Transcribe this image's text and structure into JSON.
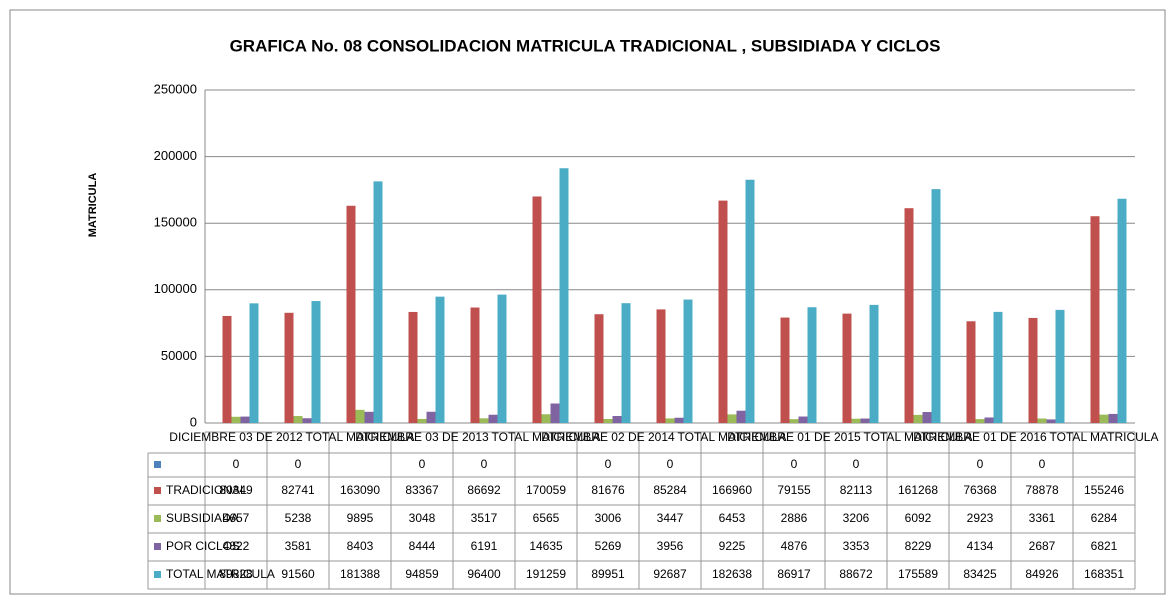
{
  "chart_data": {
    "type": "bar",
    "title": "GRAFICA No.  08  CONSOLIDACION MATRICULA TRADICIONAL , SUBSIDIADA Y CICLOS",
    "y_label": "MATRICULA",
    "categories": [
      "DICIEMBRE 03 DE 2012",
      null,
      "TOTAL MATRICULA",
      "DICIEMBRE 03 DE 2013",
      null,
      "TOTAL MATRICULA",
      "DICIEMBRE 02 DE 2014",
      null,
      "TOTAL MATRICULA",
      "DICIEMBRE 01 DE 2015",
      null,
      "TOTAL MATRICULA",
      "DICIEMBRE 01 DE 2016",
      null,
      "TOTAL MATRICULA"
    ],
    "series": [
      {
        "name": null,
        "color": "#4f81bd",
        "values": [
          0,
          0,
          null,
          0,
          0,
          null,
          0,
          0,
          null,
          0,
          0,
          null,
          0,
          0,
          null
        ]
      },
      {
        "name": "TRADICIONAL",
        "color": "#c0504d",
        "values": [
          80349,
          82741,
          163090,
          83367,
          86692,
          170059,
          81676,
          85284,
          166960,
          79155,
          82113,
          161268,
          76368,
          78878,
          155246
        ]
      },
      {
        "name": "SUBSIDIADA",
        "color": "#9bbb59",
        "values": [
          4657,
          5238,
          9895,
          3048,
          3517,
          6565,
          3006,
          3447,
          6453,
          2886,
          3206,
          6092,
          2923,
          3361,
          6284
        ]
      },
      {
        "name": "POR CICLOS",
        "color": "#8064a2",
        "values": [
          4822,
          3581,
          8403,
          8444,
          6191,
          14635,
          5269,
          3956,
          9225,
          4876,
          3353,
          8229,
          4134,
          2687,
          6821
        ]
      },
      {
        "name": "TOTAL MATRICULA",
        "color": "#4bacc6",
        "values": [
          89828,
          91560,
          181388,
          94859,
          96400,
          191259,
          89951,
          92687,
          182638,
          86917,
          88672,
          175589,
          83425,
          84926,
          168351
        ]
      }
    ],
    "ylim": [
      0,
      250000
    ],
    "yticks": [
      0,
      50000,
      100000,
      150000,
      200000,
      250000
    ],
    "grid": true
  }
}
